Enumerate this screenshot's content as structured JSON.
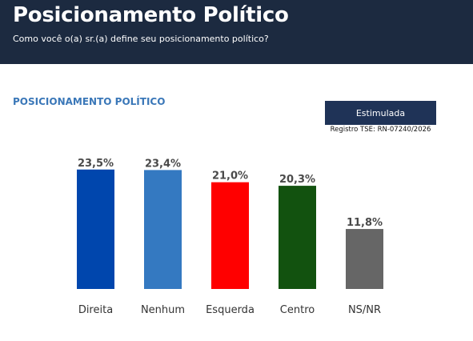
{
  "header": {
    "title": "Posicionamento Político",
    "subtitle": "Como você o(a) sr.(a) define seu posicionamento político?"
  },
  "section_label": "POSICIONAMENTO POLÍTICO",
  "badge": {
    "label": "Estimulada",
    "registro": "Registro TSE: RN-07240/2026"
  },
  "chart_data": {
    "type": "bar",
    "title": "",
    "xlabel": "",
    "ylabel": "",
    "ylim": [
      0,
      25
    ],
    "grid": false,
    "categories": [
      "Direita",
      "Nenhum",
      "Esquerda",
      "Centro",
      "NS/NR"
    ],
    "values": [
      23.5,
      23.4,
      21.0,
      20.3,
      11.8
    ],
    "value_labels": [
      "23,5%",
      "23,4%",
      "21,0%",
      "20,3%",
      "11,8%"
    ],
    "colors": [
      "#0046ad",
      "#3479c1",
      "#ff0000",
      "#12520f",
      "#666666"
    ]
  }
}
